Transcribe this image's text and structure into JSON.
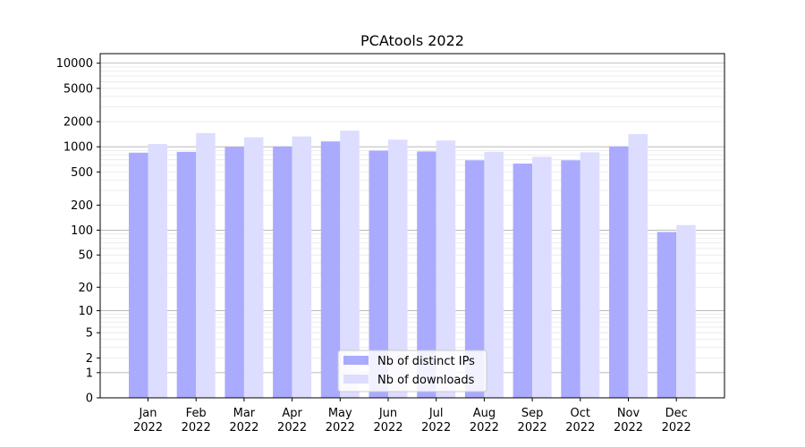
{
  "chart_data": {
    "type": "bar",
    "title": "PCAtools 2022",
    "xlabel": "",
    "ylabel": "",
    "y_scale": "symlog",
    "ylim": [
      0,
      13000
    ],
    "y_ticks": [
      0,
      1,
      2,
      5,
      10,
      20,
      50,
      100,
      200,
      500,
      1000,
      2000,
      5000,
      10000
    ],
    "grid": "horizontal",
    "legend_position": "bottom-center",
    "categories": [
      [
        "Jan",
        "2022"
      ],
      [
        "Feb",
        "2022"
      ],
      [
        "Mar",
        "2022"
      ],
      [
        "Apr",
        "2022"
      ],
      [
        "May",
        "2022"
      ],
      [
        "Jun",
        "2022"
      ],
      [
        "Jul",
        "2022"
      ],
      [
        "Aug",
        "2022"
      ],
      [
        "Sep",
        "2022"
      ],
      [
        "Oct",
        "2022"
      ],
      [
        "Nov",
        "2022"
      ],
      [
        "Dec",
        "2022"
      ]
    ],
    "series": [
      {
        "name": "Nb of distinct IPs",
        "color": "#aaaaff",
        "values": [
          850,
          870,
          990,
          1010,
          1160,
          900,
          880,
          690,
          630,
          690,
          1010,
          95
        ]
      },
      {
        "name": "Nb of downloads",
        "color": "#ddddff",
        "values": [
          1080,
          1460,
          1300,
          1330,
          1560,
          1220,
          1190,
          870,
          760,
          860,
          1420,
          115
        ]
      }
    ]
  }
}
